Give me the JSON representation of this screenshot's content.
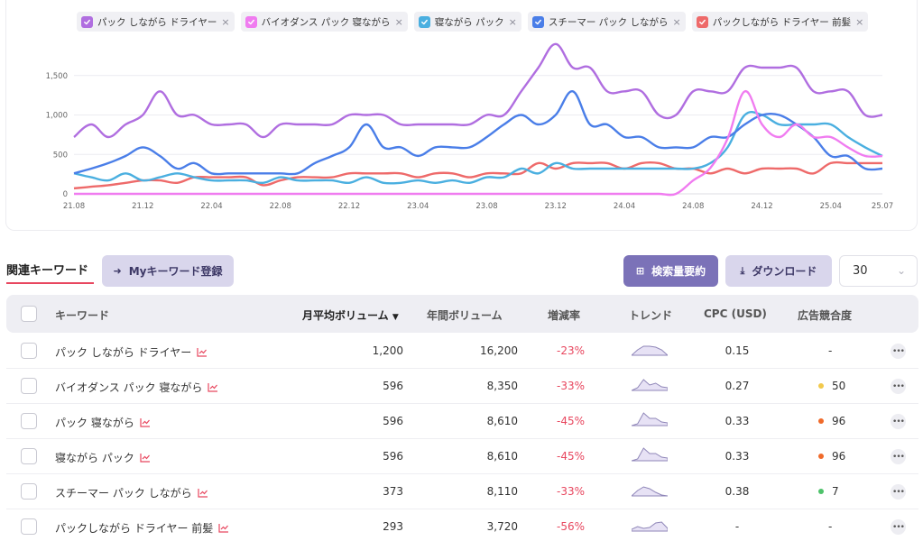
{
  "chart": {
    "legend": [
      {
        "label": "パック しながら ドライヤー",
        "color": "#b06ee0"
      },
      {
        "label": "バイオダンス パック 寝ながら",
        "color": "#f07cf0"
      },
      {
        "label": "寝ながら パック",
        "color": "#4aafe0"
      },
      {
        "label": "スチーマー パック しながら",
        "color": "#4a7ee8"
      },
      {
        "label": "パックしながら ドライヤー 前髪",
        "color": "#ee6a6a"
      }
    ],
    "remove_glyph": "×"
  },
  "chart_data": {
    "type": "line",
    "x_ticks": [
      "21.08",
      "21.12",
      "22.04",
      "22.08",
      "22.12",
      "23.04",
      "23.08",
      "23.12",
      "24.04",
      "24.08",
      "24.12",
      "25.04",
      "25.07"
    ],
    "y_ticks": [
      "0",
      "500",
      "1,000",
      "1,500"
    ],
    "ylim": [
      0,
      2000
    ],
    "grid": true,
    "x": [
      "21.08",
      "21.09",
      "21.10",
      "21.11",
      "21.12",
      "22.01",
      "22.02",
      "22.03",
      "22.04",
      "22.05",
      "22.06",
      "22.07",
      "22.08",
      "22.09",
      "22.10",
      "22.11",
      "22.12",
      "23.01",
      "23.02",
      "23.03",
      "23.04",
      "23.05",
      "23.06",
      "23.07",
      "23.08",
      "23.09",
      "23.10",
      "23.11",
      "23.12",
      "24.01",
      "24.02",
      "24.03",
      "24.04",
      "24.05",
      "24.06",
      "24.07",
      "24.08",
      "24.09",
      "24.10",
      "24.11",
      "24.12",
      "25.01",
      "25.02",
      "25.03",
      "25.04",
      "25.05",
      "25.06",
      "25.07"
    ],
    "series": [
      {
        "name": "パック しながら ドライヤー",
        "color": "#b06ee0",
        "values": [
          720,
          880,
          720,
          880,
          1000,
          1300,
          1000,
          1000,
          880,
          880,
          880,
          720,
          880,
          880,
          880,
          880,
          1000,
          1000,
          1000,
          880,
          880,
          880,
          880,
          880,
          1000,
          1000,
          1300,
          1600,
          1900,
          1600,
          1600,
          1300,
          1300,
          1300,
          1000,
          1000,
          1300,
          1300,
          1300,
          1600,
          1600,
          1600,
          1600,
          1300,
          1300,
          1300,
          1000,
          1000
        ]
      },
      {
        "name": "バイオダンス パック 寝ながら",
        "color": "#f07cf0",
        "values": [
          0,
          0,
          0,
          0,
          0,
          0,
          0,
          0,
          0,
          0,
          0,
          0,
          0,
          0,
          0,
          0,
          0,
          0,
          0,
          0,
          0,
          0,
          0,
          0,
          0,
          0,
          0,
          0,
          0,
          0,
          0,
          0,
          0,
          0,
          0,
          0,
          170,
          330,
          700,
          1300,
          880,
          720,
          880,
          720,
          720,
          590,
          480,
          480
        ]
      },
      {
        "name": "寝ながら パック",
        "color": "#4aafe0",
        "values": [
          260,
          210,
          170,
          260,
          170,
          210,
          260,
          210,
          170,
          170,
          170,
          140,
          210,
          170,
          170,
          170,
          140,
          210,
          140,
          140,
          170,
          140,
          170,
          140,
          210,
          210,
          320,
          260,
          390,
          320,
          320,
          320,
          320,
          320,
          320,
          320,
          320,
          390,
          590,
          1000,
          1000,
          880,
          880,
          880,
          880,
          720,
          590,
          480
        ]
      },
      {
        "name": "スチーマー パック しながら",
        "color": "#4a7ee8",
        "values": [
          260,
          320,
          390,
          480,
          590,
          480,
          320,
          390,
          260,
          260,
          260,
          260,
          260,
          260,
          390,
          480,
          590,
          880,
          590,
          590,
          480,
          590,
          590,
          590,
          720,
          880,
          1000,
          880,
          1000,
          1300,
          880,
          880,
          720,
          720,
          590,
          590,
          590,
          720,
          720,
          880,
          1000,
          1000,
          880,
          720,
          480,
          480,
          320,
          320
        ]
      },
      {
        "name": "パックしながら ドライヤー 前髪",
        "color": "#ee6a6a",
        "values": [
          70,
          90,
          110,
          140,
          170,
          170,
          140,
          210,
          210,
          210,
          210,
          110,
          170,
          210,
          210,
          210,
          260,
          260,
          260,
          260,
          210,
          260,
          260,
          210,
          260,
          260,
          260,
          390,
          320,
          390,
          390,
          390,
          320,
          390,
          390,
          320,
          320,
          260,
          320,
          260,
          320,
          320,
          320,
          260,
          390,
          390,
          390,
          390
        ]
      }
    ]
  },
  "toolbar": {
    "tab_label": "関連キーワード",
    "my_keyword_label": "Myキーワード登録",
    "summary_label": "検索量要約",
    "download_label": "ダウンロード",
    "page_size": "30"
  },
  "table": {
    "headers": {
      "keyword": "キーワード",
      "monthly": "月平均ボリューム",
      "yearly": "年間ボリューム",
      "change": "増減率",
      "trend": "トレンド",
      "cpc": "CPC (USD)",
      "competition": "広告競合度"
    },
    "rows": [
      {
        "keyword": "パック しながら ドライヤー",
        "monthly": "1,200",
        "yearly": "16,200",
        "change": "-23%",
        "cpc": "0.15",
        "competition": "-",
        "comp_color": "",
        "spark": [
          0,
          6,
          10,
          10,
          9,
          6,
          0
        ]
      },
      {
        "keyword": "バイオダンス パック 寝ながら",
        "monthly": "596",
        "yearly": "8,350",
        "change": "-33%",
        "cpc": "0.27",
        "competition": "50",
        "comp_color": "#f2c94c",
        "spark": [
          0,
          3,
          12,
          6,
          8,
          4,
          3
        ]
      },
      {
        "keyword": "パック 寝ながら",
        "monthly": "596",
        "yearly": "8,610",
        "change": "-45%",
        "cpc": "0.33",
        "competition": "96",
        "comp_color": "#f06a2a",
        "spark": [
          0,
          2,
          14,
          8,
          8,
          4,
          3
        ]
      },
      {
        "keyword": "寝ながら パック",
        "monthly": "596",
        "yearly": "8,610",
        "change": "-45%",
        "cpc": "0.33",
        "competition": "96",
        "comp_color": "#f06a2a",
        "spark": [
          0,
          2,
          14,
          8,
          8,
          4,
          3
        ]
      },
      {
        "keyword": "スチーマー パック しながら",
        "monthly": "373",
        "yearly": "8,110",
        "change": "-33%",
        "cpc": "0.38",
        "competition": "7",
        "comp_color": "#4ec26a",
        "spark": [
          0,
          6,
          10,
          8,
          4,
          1,
          0
        ]
      },
      {
        "keyword": "パックしながら ドライヤー 前髪",
        "monthly": "293",
        "yearly": "3,720",
        "change": "-56%",
        "cpc": "-",
        "competition": "-",
        "comp_color": "",
        "spark": [
          2,
          5,
          3,
          4,
          9,
          10,
          3
        ]
      }
    ]
  }
}
